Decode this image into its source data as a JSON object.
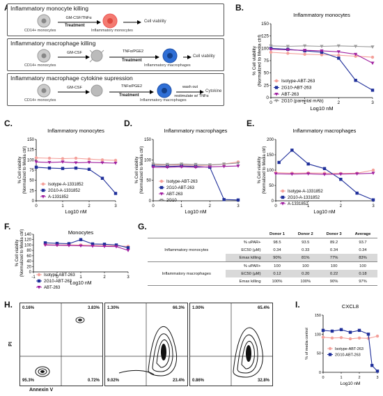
{
  "panel_labels": [
    "A.",
    "B.",
    "C.",
    "D.",
    "E.",
    "F.",
    "G.",
    "H.",
    "I."
  ],
  "panelA": {
    "box1": {
      "title": "Inflammatory monocyte killing",
      "source": "CD14+ monocytes",
      "step": "GM-CSF/TNFα",
      "treat": "Treatment",
      "product": "Inflammatory monocytes",
      "readout": "Cell viability"
    },
    "box2": {
      "title": "Inflammatory macrophage killing",
      "source": "CD14+ monocytes",
      "step1": "GM-CSF",
      "step2": "TNFα/PGE2",
      "treat": "Treatment",
      "product": "Inflammatory macrophages",
      "readout": "Cell viability"
    },
    "box3": {
      "title": "Inflammatory macrophage cytokine supression",
      "source": "CD14+ monocytes",
      "step1": "GM-CSF",
      "step2": "TNFα/PGE2",
      "treat": "Treatment",
      "product": "Inflammatory macrophages",
      "wash": "wash out",
      "restim": "restimulate w/ TNFα",
      "readout": "Cytokine"
    }
  },
  "chart_data": [
    {
      "id": "B",
      "type": "line",
      "title": "Inflammatory monocytes",
      "xlabel": "Log10 nM",
      "ylabel": "% Cell viability (Normalized to Media ctrl)",
      "xlim": [
        0,
        3
      ],
      "ylim": [
        0,
        150
      ],
      "xticks": [
        0,
        1,
        2,
        3
      ],
      "yticks": [
        0,
        25,
        50,
        75,
        100,
        125,
        150
      ],
      "series": [
        {
          "name": "Isotype-ABT-263",
          "color": "#f4a09a",
          "marker": "circle",
          "x": [
            0,
            0.5,
            1,
            1.5,
            2,
            2.5,
            3
          ],
          "y": [
            92,
            90,
            88,
            87,
            86,
            84,
            82
          ]
        },
        {
          "name": "2G10-ABT-263",
          "color": "#1f2f9a",
          "marker": "square",
          "x": [
            0,
            0.5,
            1,
            1.5,
            2,
            2.5,
            3
          ],
          "y": [
            100,
            98,
            95,
            92,
            80,
            35,
            15
          ]
        },
        {
          "name": "ABT-263",
          "color": "#a020a0",
          "marker": "triangle-down",
          "x": [
            0,
            0.5,
            1,
            1.5,
            2,
            2.5,
            3
          ],
          "y": [
            98,
            97,
            96,
            95,
            93,
            88,
            70
          ]
        },
        {
          "name": "2G10 (parental mAb)",
          "color": "#999999",
          "marker": "triangle-down",
          "x": [
            0,
            0.5,
            1,
            1.5,
            2,
            2.5,
            3
          ],
          "y": [
            105,
            104,
            105,
            104,
            105,
            104,
            103
          ]
        }
      ]
    },
    {
      "id": "C",
      "type": "line",
      "title": "Inflammatory monocytes",
      "xlabel": "Log10 nM",
      "ylabel": "% Cell viability (Normalized to Media ctrl)",
      "xlim": [
        0,
        3
      ],
      "ylim": [
        0,
        150
      ],
      "xticks": [
        0,
        1,
        2,
        3
      ],
      "yticks": [
        0,
        25,
        50,
        75,
        100,
        125,
        150
      ],
      "series": [
        {
          "name": "Isotype-A-1331852",
          "color": "#f4a09a",
          "marker": "circle",
          "x": [
            0,
            0.5,
            1,
            1.5,
            2,
            2.5,
            3
          ],
          "y": [
            105,
            104,
            103,
            104,
            102,
            100,
            99
          ]
        },
        {
          "name": "2G10-A-1331852",
          "color": "#1f2f9a",
          "marker": "square",
          "x": [
            0,
            0.5,
            1,
            1.5,
            2,
            2.5,
            3
          ],
          "y": [
            82,
            80,
            79,
            80,
            77,
            55,
            18
          ]
        },
        {
          "name": "A-1331852",
          "color": "#a020a0",
          "marker": "triangle-down",
          "x": [
            0,
            0.5,
            1,
            1.5,
            2,
            2.5,
            3
          ],
          "y": [
            95,
            94,
            95,
            93,
            94,
            93,
            92
          ]
        }
      ]
    },
    {
      "id": "D",
      "type": "line",
      "title": "Inflammatory macrophages",
      "xlabel": "Log10 nM",
      "ylabel": "% Cell viability (Normalized to Media ctrl)",
      "xlim": [
        0,
        3
      ],
      "ylim": [
        0,
        150
      ],
      "xticks": [
        0,
        1,
        2,
        3
      ],
      "yticks": [
        0,
        50,
        100,
        150
      ],
      "series": [
        {
          "name": "Isotype-ABT-263",
          "color": "#f4a09a",
          "marker": "circle",
          "x": [
            0,
            0.5,
            1,
            1.5,
            2,
            2.5,
            3
          ],
          "y": [
            88,
            87,
            88,
            86,
            87,
            90,
            95
          ]
        },
        {
          "name": "2G10-ABT-263",
          "color": "#1f2f9a",
          "marker": "square",
          "x": [
            0,
            0.5,
            1,
            1.5,
            2,
            2.5,
            3
          ],
          "y": [
            85,
            84,
            85,
            84,
            82,
            3,
            2
          ]
        },
        {
          "name": "ABT-263",
          "color": "#a020a0",
          "marker": "triangle-down",
          "x": [
            0,
            0.5,
            1,
            1.5,
            2,
            2.5,
            3
          ],
          "y": [
            82,
            82,
            83,
            82,
            83,
            84,
            85
          ]
        },
        {
          "name": "2G10",
          "color": "#999999",
          "marker": "triangle-down",
          "x": [
            0,
            0.5,
            1,
            1.5,
            2,
            2.5,
            3
          ],
          "y": [
            90,
            89,
            90,
            89,
            88,
            90,
            92
          ]
        }
      ]
    },
    {
      "id": "E",
      "type": "line",
      "title": "Inflammatory macrophages",
      "xlabel": "Log10 nM",
      "ylabel": "% Cell viability (Normalized to Media ctrl)",
      "xlim": [
        0,
        3
      ],
      "ylim": [
        0,
        200
      ],
      "xticks": [
        0,
        1,
        2,
        3
      ],
      "yticks": [
        0,
        50,
        100,
        150,
        200
      ],
      "series": [
        {
          "name": "Isotype-A-1331852",
          "color": "#f4a09a",
          "marker": "circle",
          "x": [
            0,
            0.5,
            1,
            1.5,
            2,
            2.5,
            3
          ],
          "y": [
            92,
            90,
            91,
            90,
            89,
            90,
            100
          ]
        },
        {
          "name": "2G10-A-1331852",
          "color": "#1f2f9a",
          "marker": "square",
          "x": [
            0.1,
            0.5,
            1,
            1.5,
            2,
            2.5,
            3
          ],
          "y": [
            125,
            165,
            120,
            105,
            70,
            25,
            3
          ]
        },
        {
          "name": "A-1331852",
          "color": "#a020a0",
          "marker": "triangle-down",
          "x": [
            0,
            0.5,
            1,
            1.5,
            2,
            2.5,
            3
          ],
          "y": [
            88,
            87,
            88,
            86,
            87,
            88,
            90
          ]
        }
      ]
    },
    {
      "id": "F",
      "type": "line",
      "title": "Monocytes",
      "xlabel": "Log10 nM",
      "ylabel": "% Cell viability (Normalized to Media ctrl)",
      "xlim": [
        -1,
        3
      ],
      "ylim": [
        0,
        140
      ],
      "xticks": [
        -1,
        0,
        1,
        2,
        3
      ],
      "yticks": [
        0,
        20,
        40,
        60,
        80,
        100,
        120,
        140
      ],
      "series": [
        {
          "name": "Isotype-ABT-263",
          "color": "#f4a09a",
          "marker": "circle",
          "x": [
            -0.5,
            0,
            0.5,
            1,
            1.5,
            2,
            2.5,
            3
          ],
          "y": [
            102,
            100,
            101,
            100,
            99,
            98,
            97,
            95
          ]
        },
        {
          "name": "2G10-ABT-263",
          "color": "#1f2f9a",
          "marker": "square",
          "x": [
            -0.5,
            0,
            0.5,
            1,
            1.5,
            2,
            2.5,
            3
          ],
          "y": [
            108,
            106,
            105,
            120,
            104,
            103,
            100,
            90
          ]
        },
        {
          "name": "ABT-263",
          "color": "#a020a0",
          "marker": "triangle-down",
          "x": [
            -0.5,
            0,
            0.5,
            1,
            1.5,
            2,
            2.5,
            3
          ],
          "y": [
            100,
            99,
            98,
            97,
            96,
            95,
            94,
            80
          ]
        }
      ]
    },
    {
      "id": "I",
      "type": "line",
      "title": "CXCL8",
      "xlabel": "Log10 nM",
      "ylabel": "% of media control",
      "xlim": [
        0,
        3
      ],
      "ylim": [
        0,
        150
      ],
      "xticks": [
        0,
        1,
        2,
        3
      ],
      "yticks": [
        0,
        50,
        100,
        150
      ],
      "series": [
        {
          "name": "Isotype-ABT-263",
          "color": "#f4a09a",
          "marker": "circle",
          "x": [
            0,
            0.5,
            1,
            1.5,
            2,
            2.5,
            3
          ],
          "y": [
            92,
            90,
            91,
            88,
            90,
            89,
            95
          ]
        },
        {
          "name": "2G10-ABT-263",
          "color": "#1f2f9a",
          "marker": "square",
          "x": [
            0,
            0.5,
            1,
            1.5,
            2,
            2.5,
            2.7,
            3
          ],
          "y": [
            110,
            108,
            112,
            105,
            110,
            100,
            18,
            3
          ]
        }
      ]
    }
  ],
  "tableG": {
    "headers": [
      "",
      "",
      "Donor 1",
      "Donor 2",
      "Donor 3",
      "Average"
    ],
    "groups": [
      {
        "label": "Inflammatory monocytes",
        "rows": [
          {
            "metric": "% uPAR+",
            "values": [
              "98.5",
              "93.5",
              "89.2",
              "93.7"
            ]
          },
          {
            "metric": "EC50 (μM)",
            "values": [
              "0.34",
              "0.33",
              "0.34",
              "0.34"
            ]
          },
          {
            "metric": "Emax killing",
            "values": [
              "90%",
              "81%",
              "77%",
              "83%"
            ]
          }
        ]
      },
      {
        "label": "Inflammatory macrophages",
        "rows": [
          {
            "metric": "% uPAR+",
            "values": [
              "100",
              "100",
              "100",
              "100"
            ]
          },
          {
            "metric": "EC50 (μM)",
            "values": [
              "0.12",
              "0.20",
              "0.22",
              "0.18"
            ]
          },
          {
            "metric": "Emax killing",
            "values": [
              "100%",
              "100%",
              "90%",
              "97%"
            ]
          }
        ]
      }
    ]
  },
  "panelH": {
    "ylabel": "PI",
    "xlabel": "Annexin V",
    "plots": [
      {
        "ul": "0.16%",
        "ur": "3.83%",
        "ll": "95.3%",
        "lr": "0.72%"
      },
      {
        "ul": "1.30%",
        "ur": "66.3%",
        "ll": "9.02%",
        "lr": "23.4%"
      },
      {
        "ul": "1.00%",
        "ur": "65.4%",
        "ll": "0.86%",
        "lr": "32.8%"
      }
    ]
  }
}
